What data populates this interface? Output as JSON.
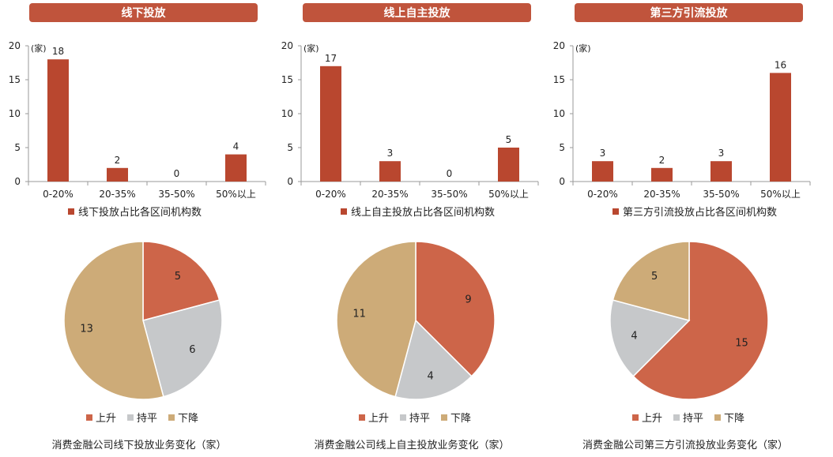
{
  "panels": [
    {
      "header": "线下投放",
      "bar": {
        "type": "bar",
        "unit": "(家)",
        "categories": [
          "0-20%",
          "20-35%",
          "35-50%",
          "50%以上"
        ],
        "values": [
          18,
          2,
          0,
          4
        ],
        "ylim": [
          0,
          20
        ],
        "yticks": [
          0,
          5,
          10,
          15,
          20
        ],
        "legend": "线下投放占比各区间机构数"
      },
      "pie": {
        "type": "pie",
        "slices": [
          {
            "label": "上升",
            "value": 5
          },
          {
            "label": "持平",
            "value": 6
          },
          {
            "label": "下降",
            "value": 13
          }
        ],
        "caption": "消费金融公司线下投放业务变化（家）"
      }
    },
    {
      "header": "线上自主投放",
      "bar": {
        "type": "bar",
        "unit": "(家)",
        "categories": [
          "0-20%",
          "20-35%",
          "35-50%",
          "50%以上"
        ],
        "values": [
          17,
          3,
          0,
          5
        ],
        "ylim": [
          0,
          20
        ],
        "yticks": [
          0,
          5,
          10,
          15,
          20
        ],
        "legend": "线上自主投放占比各区间机构数"
      },
      "pie": {
        "type": "pie",
        "slices": [
          {
            "label": "上升",
            "value": 9
          },
          {
            "label": "持平",
            "value": 4
          },
          {
            "label": "下降",
            "value": 11
          }
        ],
        "caption": "消费金融公司线上自主投放业务变化（家）"
      }
    },
    {
      "header": "第三方引流投放",
      "bar": {
        "type": "bar",
        "unit": "(家)",
        "categories": [
          "0-20%",
          "20-35%",
          "35-50%",
          "50%以上"
        ],
        "values": [
          3,
          2,
          3,
          16
        ],
        "ylim": [
          0,
          20
        ],
        "yticks": [
          0,
          5,
          10,
          15,
          20
        ],
        "legend": "第三方引流投放占比各区间机构数"
      },
      "pie": {
        "type": "pie",
        "slices": [
          {
            "label": "上升",
            "value": 15
          },
          {
            "label": "持平",
            "value": 4
          },
          {
            "label": "下降",
            "value": 5
          }
        ],
        "caption": "消费金融公司第三方引流投放业务变化（家）"
      }
    }
  ],
  "colors": {
    "header_bg": "#c0543c",
    "bar": "#b9472f",
    "up": "#cd6549",
    "flat": "#c6c8ca",
    "down": "#cdab78",
    "axis": "#9a9a9a"
  }
}
